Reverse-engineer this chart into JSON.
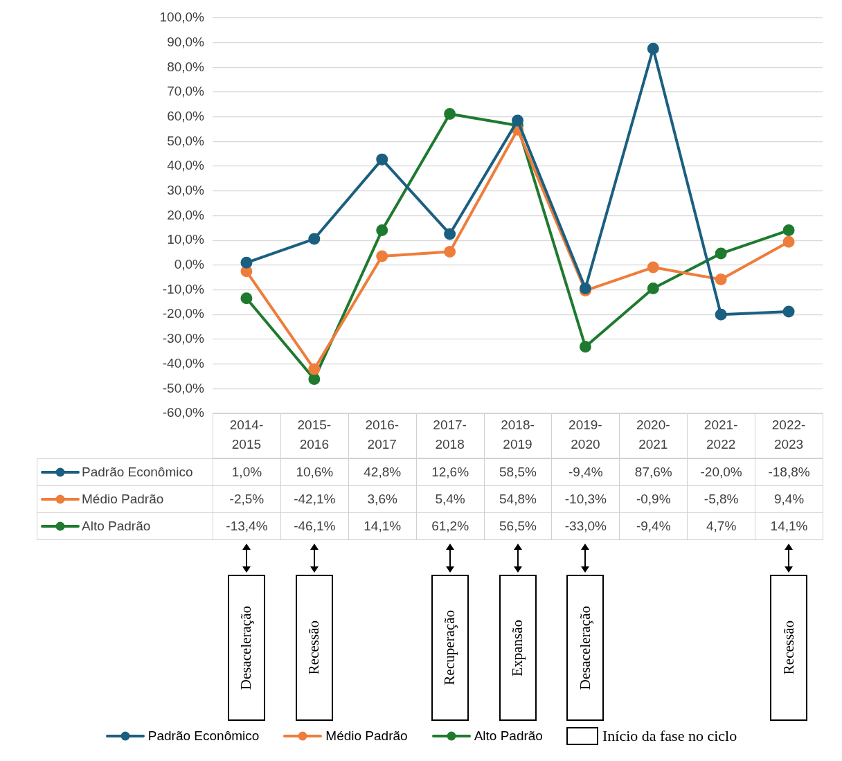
{
  "chart_data": {
    "type": "line",
    "categories": [
      "2014-2015",
      "2015-2016",
      "2016-2017",
      "2017-2018",
      "2018-2019",
      "2019-2020",
      "2020-2021",
      "2021-2022",
      "2022-2023"
    ],
    "series": [
      {
        "name": "Padrão Econômico",
        "color": "#1b5f80",
        "values": [
          1.0,
          10.6,
          42.8,
          12.6,
          58.5,
          -9.4,
          87.6,
          -20.0,
          -18.8
        ],
        "value_labels": [
          "1,0%",
          "10,6%",
          "42,8%",
          "12,6%",
          "58,5%",
          "-9,4%",
          "87,6%",
          "-20,0%",
          "-18,8%"
        ]
      },
      {
        "name": "Médio Padrão",
        "color": "#ee7d3b",
        "values": [
          -2.5,
          -42.1,
          3.6,
          5.4,
          54.8,
          -10.3,
          -0.9,
          -5.8,
          9.4
        ],
        "value_labels": [
          "-2,5%",
          "-42,1%",
          "3,6%",
          "5,4%",
          "54,8%",
          "-10,3%",
          "-0,9%",
          "-5,8%",
          "9,4%"
        ]
      },
      {
        "name": "Alto Padrão",
        "color": "#1e7a2f",
        "values": [
          -13.4,
          -46.1,
          14.1,
          61.2,
          56.5,
          -33.0,
          -9.4,
          4.7,
          14.1
        ],
        "value_labels": [
          "-13,4%",
          "-46,1%",
          "14,1%",
          "61,2%",
          "56,5%",
          "-33,0%",
          "-9,4%",
          "4,7%",
          "14,1%"
        ]
      }
    ],
    "ylim": [
      -60,
      100
    ],
    "yticks": [
      {
        "value": -60,
        "label": "-60,0%"
      },
      {
        "value": -50,
        "label": "-50,0%"
      },
      {
        "value": -40,
        "label": "-40,0%"
      },
      {
        "value": -30,
        "label": "-30,0%"
      },
      {
        "value": -20,
        "label": "-20,0%"
      },
      {
        "value": -10,
        "label": "-10,0%"
      },
      {
        "value": 0,
        "label": "0,0%"
      },
      {
        "value": 10,
        "label": "10,0%"
      },
      {
        "value": 20,
        "label": "20,0%"
      },
      {
        "value": 30,
        "label": "30,0%"
      },
      {
        "value": 40,
        "label": "40,0%"
      },
      {
        "value": 50,
        "label": "50,0%"
      },
      {
        "value": 60,
        "label": "60,0%"
      },
      {
        "value": 70,
        "label": "70,0%"
      },
      {
        "value": 80,
        "label": "80,0%"
      },
      {
        "value": 90,
        "label": "90,0%"
      },
      {
        "value": 100,
        "label": "100,0%"
      }
    ],
    "grid": "y",
    "legend": "bottom",
    "marker": "circle",
    "line_style": "solid",
    "annotations": [
      "Desaceleração",
      "Recessão",
      "Recuperação",
      "Expansão",
      "Desaceleração",
      "Recessão",
      "Início da fase no ciclo"
    ]
  }
}
